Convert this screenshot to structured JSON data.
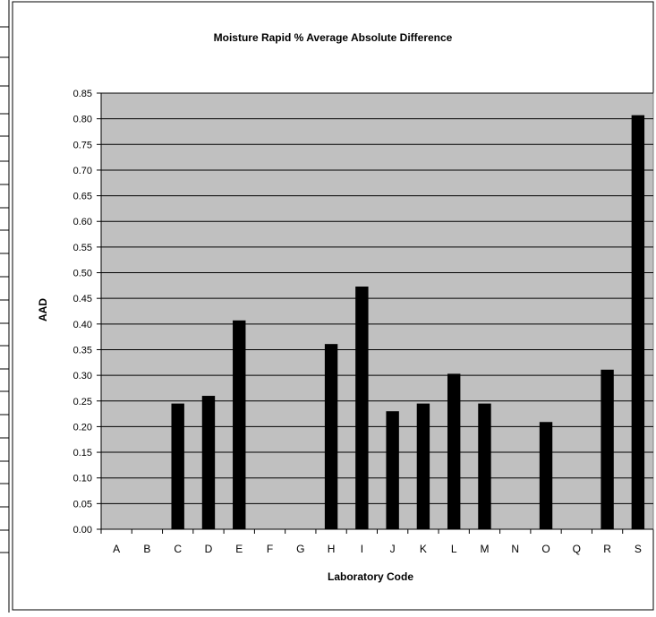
{
  "chart_data": {
    "type": "bar",
    "title": "Moisture Rapid % Average Absolute Difference",
    "xlabel": "Laboratory Code",
    "ylabel": "AAD",
    "categories": [
      "A",
      "B",
      "C",
      "D",
      "E",
      "F",
      "G",
      "H",
      "I",
      "J",
      "K",
      "L",
      "M",
      "N",
      "O",
      "Q",
      "R",
      "S"
    ],
    "values": [
      null,
      null,
      0.245,
      0.26,
      0.407,
      null,
      null,
      0.361,
      0.473,
      0.23,
      0.245,
      0.303,
      0.245,
      null,
      0.209,
      null,
      0.311,
      0.807
    ],
    "ylim": [
      0,
      0.85
    ],
    "ytick_step": 0.05,
    "grid": true,
    "legend": "none",
    "colors": {
      "plot_background": "#c0c0c0",
      "bar_fill": "#000000",
      "gridline": "#000000"
    }
  }
}
